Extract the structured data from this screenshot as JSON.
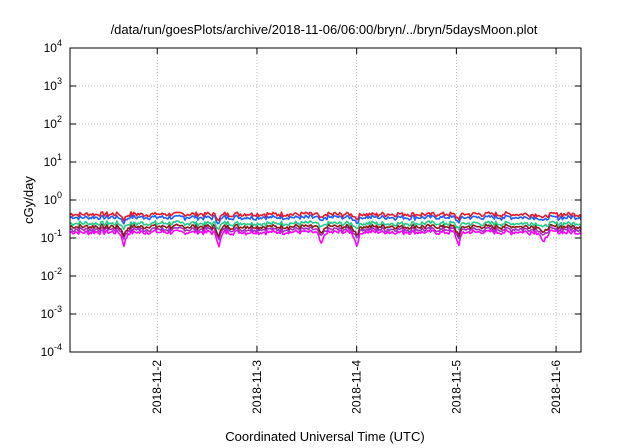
{
  "chart_data": {
    "type": "line",
    "title": "/data/run/goesPlots/archive/2018-11-06/06:00/bryn/../bryn/5daysMoon.plot",
    "xlabel": "Coordinated Universal Time (UTC)",
    "ylabel": "cGy/day",
    "yscale": "log",
    "ylim": [
      0.0001,
      10000
    ],
    "xlim": [
      "2018-11-01T03:00",
      "2018-11-06T06:00"
    ],
    "grid": true,
    "yticks": [
      {
        "value": 0.0001,
        "base": "10",
        "exp": "-4"
      },
      {
        "value": 0.001,
        "base": "10",
        "exp": "-3"
      },
      {
        "value": 0.01,
        "base": "10",
        "exp": "-2"
      },
      {
        "value": 0.1,
        "base": "10",
        "exp": "-1"
      },
      {
        "value": 1,
        "base": "10",
        "exp": "0"
      },
      {
        "value": 10,
        "base": "10",
        "exp": "1"
      },
      {
        "value": 100,
        "base": "10",
        "exp": "2"
      },
      {
        "value": 1000,
        "base": "10",
        "exp": "3"
      },
      {
        "value": 10000,
        "base": "10",
        "exp": "4"
      }
    ],
    "xticks": [
      {
        "value": "2018-11-02T00:00",
        "label": "2018-11-2"
      },
      {
        "value": "2018-11-03T00:00",
        "label": "2018-11-3"
      },
      {
        "value": "2018-11-04T00:00",
        "label": "2018-11-4"
      },
      {
        "value": "2018-11-05T00:00",
        "label": "2018-11-5"
      },
      {
        "value": "2018-11-06T00:00",
        "label": "2018-11-6"
      }
    ],
    "dips": [
      "2018-11-01T16:00",
      "2018-11-02T14:50",
      "2018-11-03T15:30",
      "2018-11-04T00:00",
      "2018-11-05T00:30",
      "2018-11-05T21:00"
    ],
    "series": [
      {
        "color": "#e8192c",
        "base": 0.4
      },
      {
        "color": "#1f5fff",
        "base": 0.33
      },
      {
        "color": "#22cc88",
        "base": 0.23
      },
      {
        "color": "#8b1a1a",
        "base": 0.19
      },
      {
        "color": "#a030c0",
        "base": 0.16
      },
      {
        "color": "#ff00ff",
        "base": 0.135
      }
    ]
  }
}
